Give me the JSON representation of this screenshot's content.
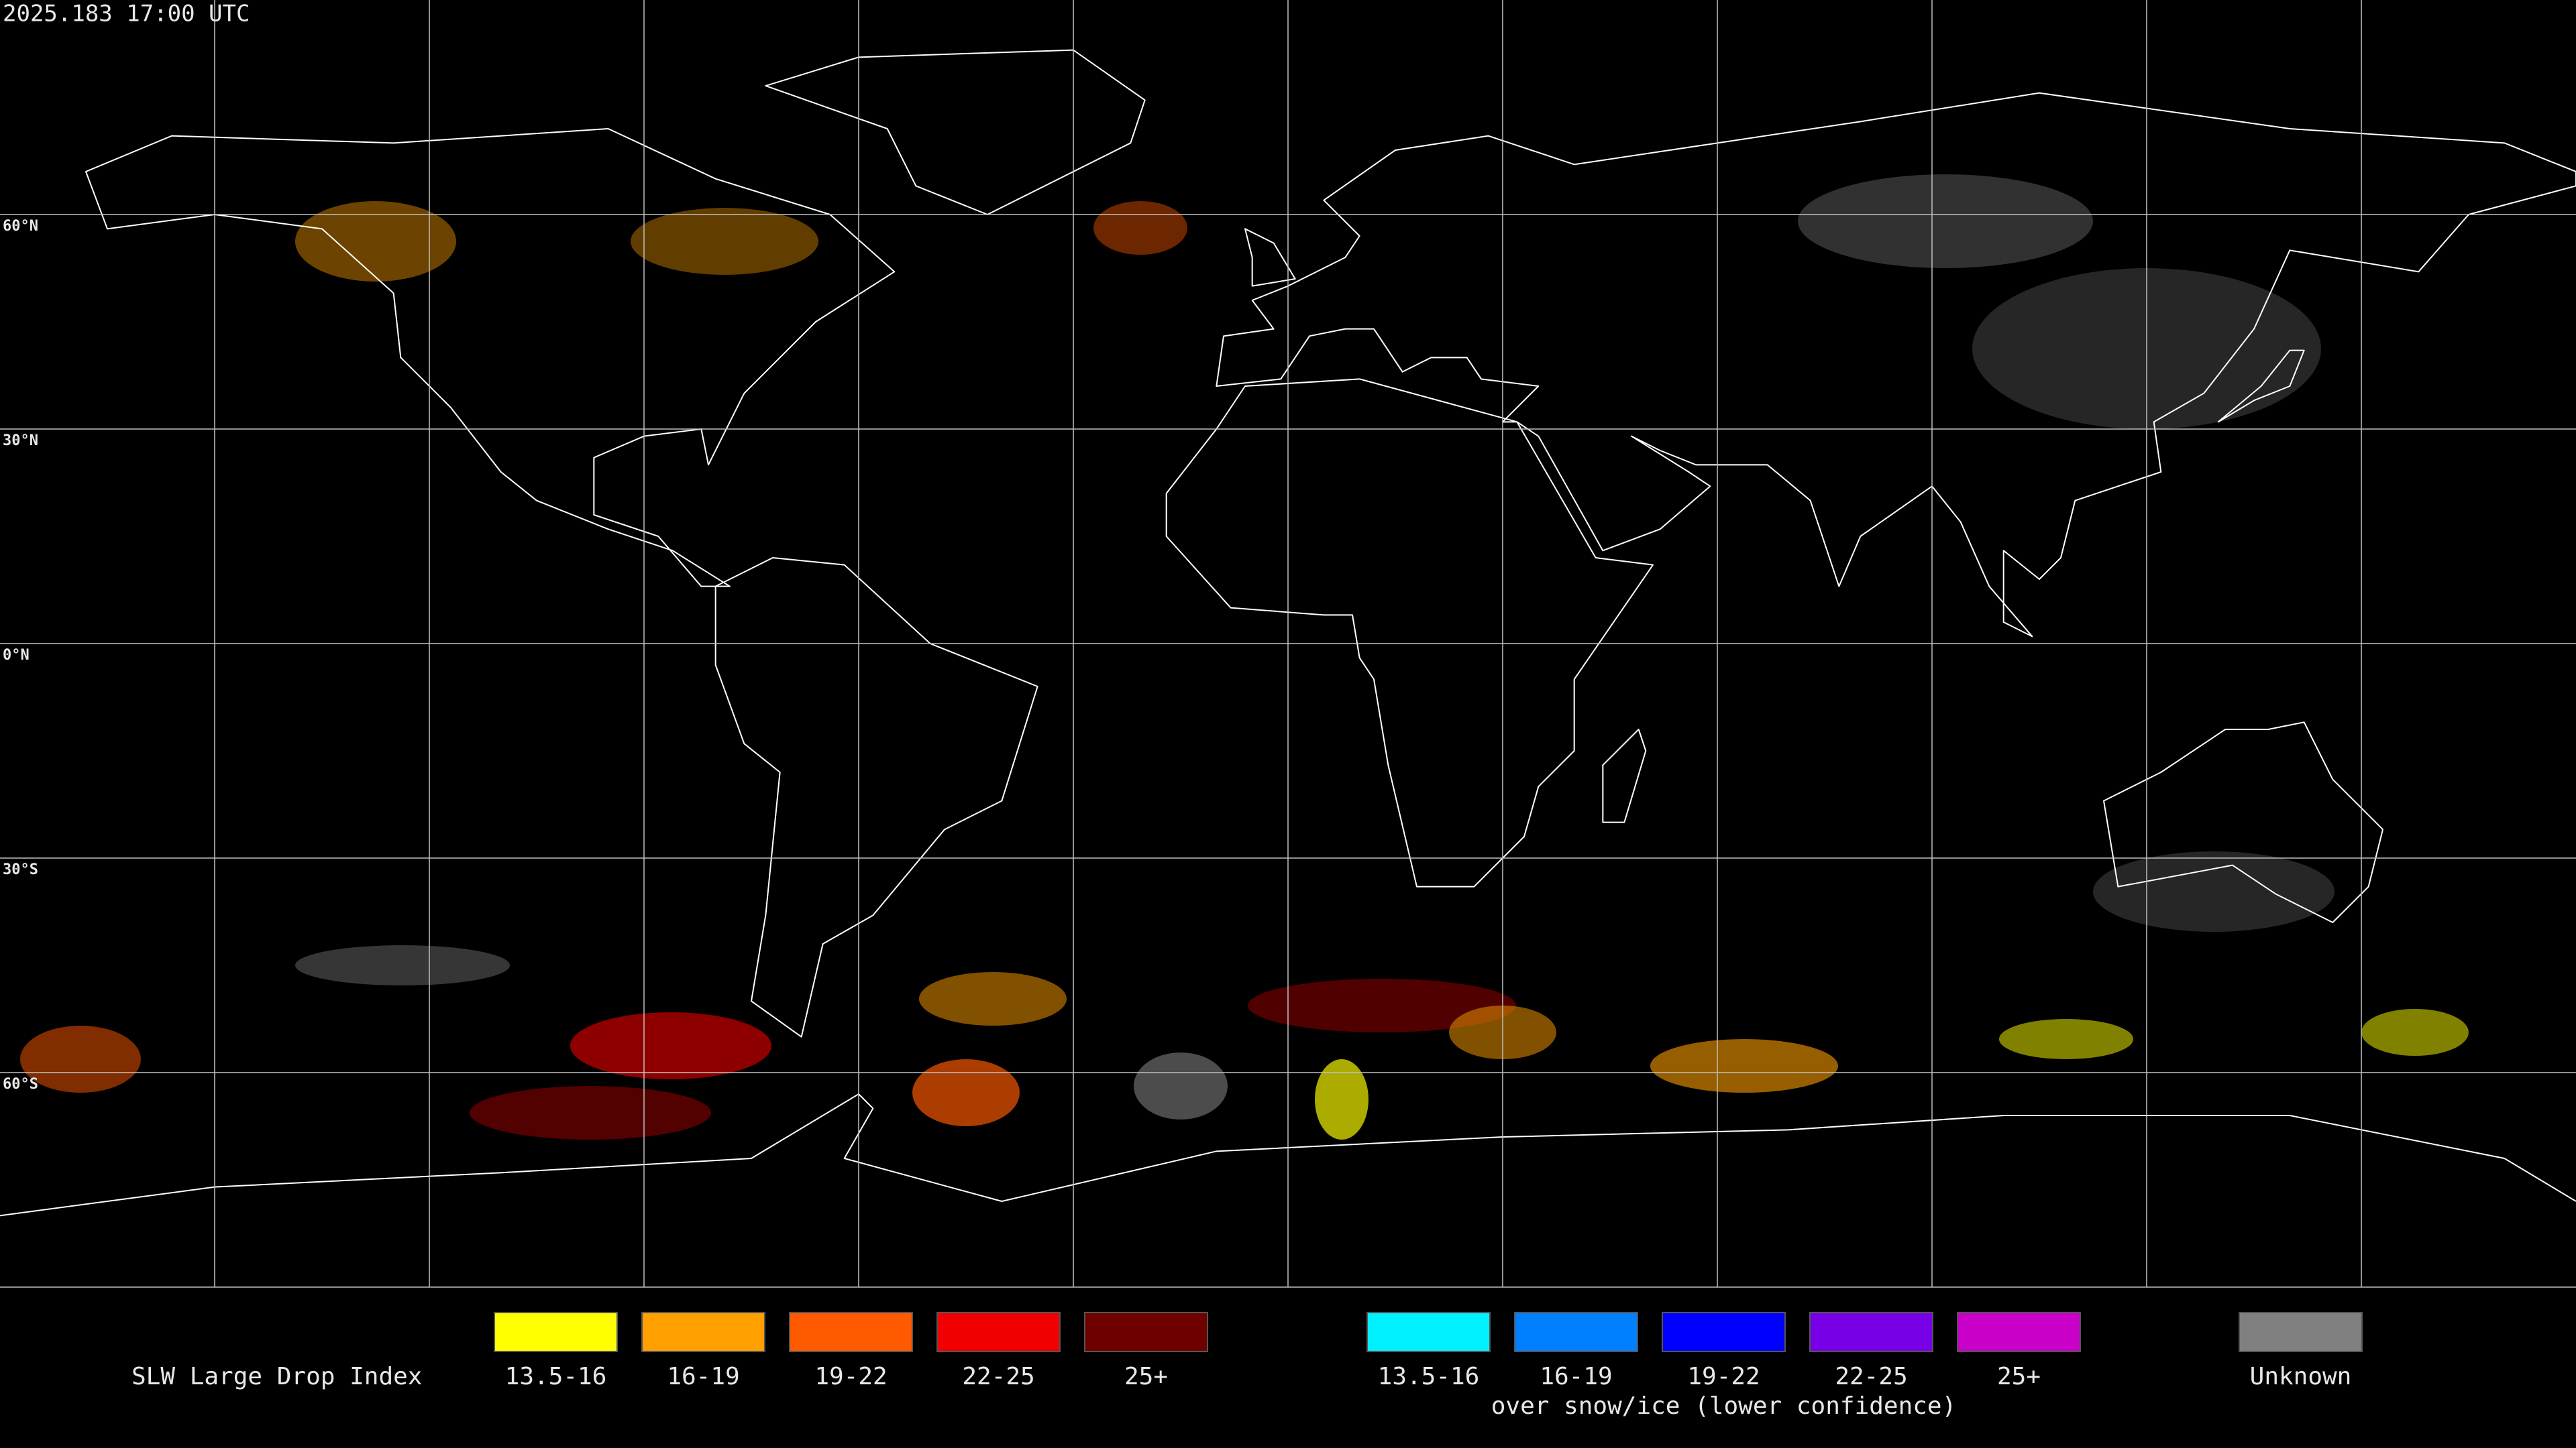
{
  "timestamp": "2025.183 17:00 UTC",
  "latitude_labels": [
    "60°N",
    "30°N",
    "0°N",
    "30°S",
    "60°S"
  ],
  "legend": {
    "title": "SLW Large Drop Index",
    "groups": [
      {
        "items": [
          {
            "label": "13.5-16",
            "color": "#ffff00"
          },
          {
            "label": "16-19",
            "color": "#ffa000"
          },
          {
            "label": "19-22",
            "color": "#ff5a00"
          },
          {
            "label": "22-25",
            "color": "#f00000"
          },
          {
            "label": "25+",
            "color": "#6e0000"
          }
        ]
      },
      {
        "subtitle": "over snow/ice (lower confidence)",
        "items": [
          {
            "label": "13.5-16",
            "color": "#00f0ff"
          },
          {
            "label": "16-19",
            "color": "#0080ff"
          },
          {
            "label": "19-22",
            "color": "#0000ff"
          },
          {
            "label": "22-25",
            "color": "#7800e6"
          },
          {
            "label": "25+",
            "color": "#c800c8"
          }
        ]
      },
      {
        "items": [
          {
            "label": "Unknown",
            "color": "#808080"
          }
        ]
      }
    ]
  }
}
